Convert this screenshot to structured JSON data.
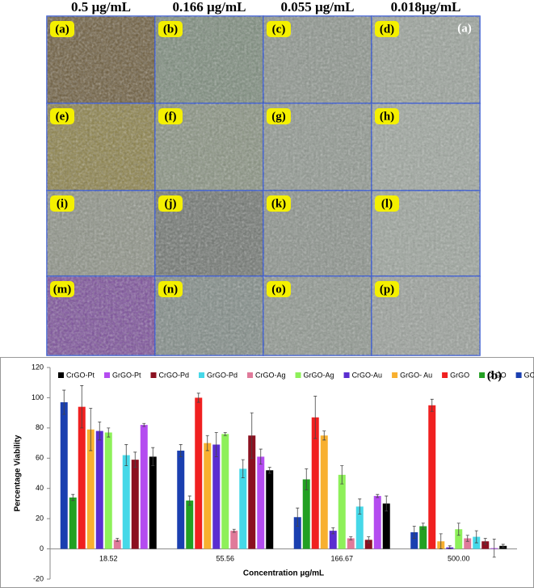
{
  "image_grid": {
    "columns": [
      "0.5 µg/mL",
      "0.166 µg/mL",
      "0.055 µg/mL",
      "0.018µg/mL"
    ],
    "panels": [
      "(a)",
      "(b)",
      "(c)",
      "(d)",
      "(e)",
      "(f)",
      "(g)",
      "(h)",
      "(i)",
      "(j)",
      "(k)",
      "(l)",
      "(m)",
      "(n)",
      "(o)",
      "(p)"
    ],
    "figure_label": "(a)"
  },
  "chart_data": {
    "type": "bar",
    "panel_label": "(b)",
    "y_label": "Percentage Viability",
    "x_label": "Concentration µg/mL",
    "categories": [
      "18.52",
      "55.56",
      "166.67",
      "500.00"
    ],
    "ylim": [
      -20,
      120
    ],
    "yticks": [
      -20,
      0,
      20,
      40,
      60,
      80,
      100,
      120
    ],
    "series": [
      {
        "name": "CrGO-Pt",
        "color": "#000000",
        "values": [
          61,
          52,
          30,
          2
        ],
        "errors": [
          6,
          2,
          5,
          1
        ]
      },
      {
        "name": "GrGO-Pt",
        "color": "#b44cf0",
        "values": [
          82,
          61,
          35,
          0.5
        ],
        "errors": [
          1,
          5,
          1,
          6
        ]
      },
      {
        "name": "CrGO-Pd",
        "color": "#8b1020",
        "values": [
          59,
          75,
          6,
          5
        ],
        "errors": [
          5,
          15,
          2,
          2
        ]
      },
      {
        "name": "GrGO-Pd",
        "color": "#46d8e8",
        "values": [
          62,
          53,
          28,
          8
        ],
        "errors": [
          7,
          6,
          5,
          4
        ]
      },
      {
        "name": "CrGO-Ag",
        "color": "#e07a9a",
        "values": [
          6,
          12,
          7,
          7
        ],
        "errors": [
          1,
          1,
          1,
          2
        ]
      },
      {
        "name": "GrGO-Ag",
        "color": "#8ef05a",
        "values": [
          77,
          76,
          49,
          13
        ],
        "errors": [
          3,
          1,
          6,
          4
        ]
      },
      {
        "name": "CrGO-Au",
        "color": "#5a2ed0",
        "values": [
          78,
          69,
          12,
          1
        ],
        "errors": [
          6,
          8,
          2,
          1
        ]
      },
      {
        "name": "GrGO- Au",
        "color": "#f8b030",
        "values": [
          79,
          70,
          75,
          5
        ],
        "errors": [
          14,
          5,
          3,
          5
        ]
      },
      {
        "name": "GrGO",
        "color": "#f02020",
        "values": [
          94,
          100,
          87,
          95
        ],
        "errors": [
          14,
          3,
          14,
          4
        ]
      },
      {
        "name": "CrGO",
        "color": "#22a022",
        "values": [
          34,
          32,
          46,
          15
        ],
        "errors": [
          2,
          3,
          7,
          2
        ]
      },
      {
        "name": "GO",
        "color": "#1a3fb0",
        "values": [
          97,
          65,
          21,
          11
        ],
        "errors": [
          8,
          4,
          6,
          4
        ]
      }
    ]
  }
}
